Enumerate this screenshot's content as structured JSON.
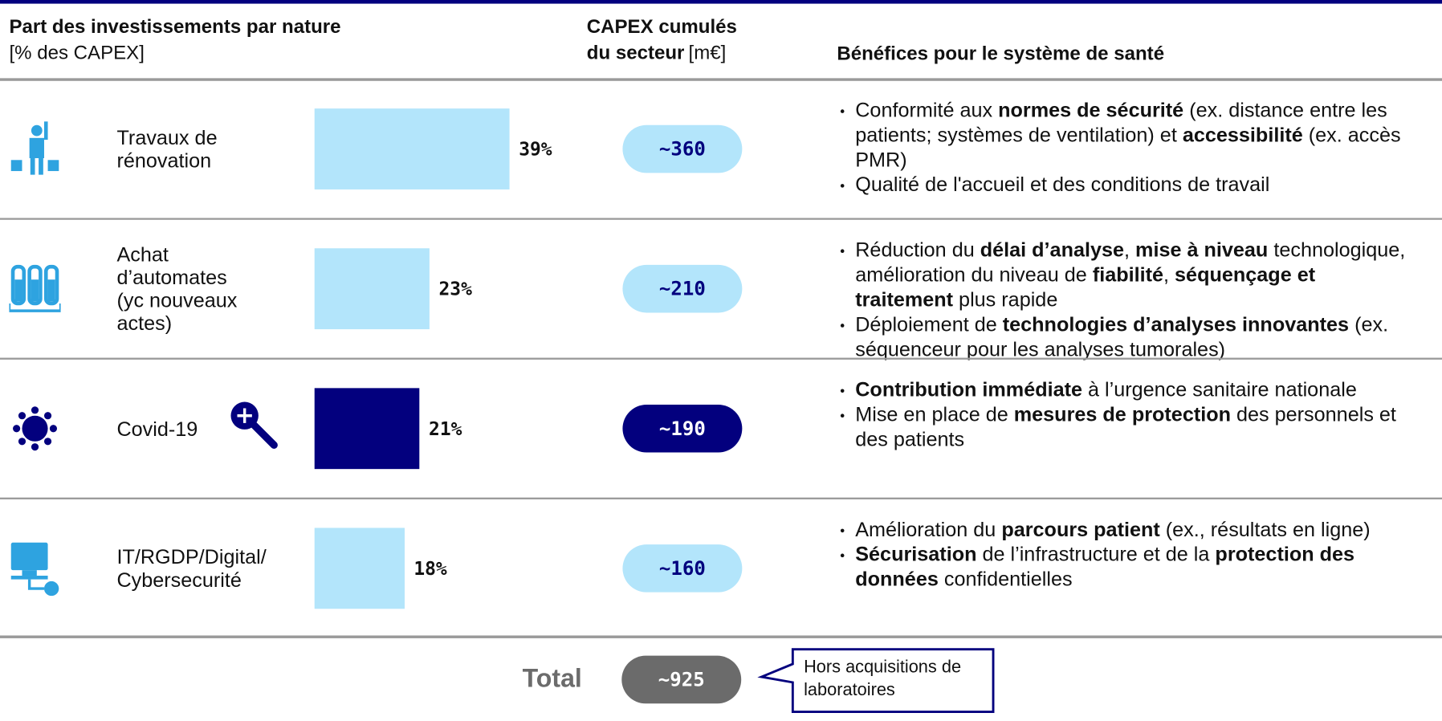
{
  "header": {
    "col1_title": "Part des investissements par nature",
    "col1_unit": "[% des CAPEX]",
    "col2_title": "CAPEX cumulés",
    "col2_sub": "du secteur",
    "col2_unit": "[m€]",
    "col3_title": "Bénéfices pour le système de santé"
  },
  "colors": {
    "light": "#b3e5fb",
    "dark": "#03007e",
    "total": "#6b6b6b"
  },
  "rows": [
    {
      "label": [
        "Travaux de",
        "rénovation"
      ],
      "share": 39,
      "share_label": "39%",
      "capex": "~360",
      "style": "light",
      "benefits": [
        [
          {
            "text": "Conformité aux ",
            "bold": false
          },
          {
            "text": "normes de sécurité",
            "bold": true
          },
          {
            "text": " (ex. distance entre les patients; systèmes de ventilation) et ",
            "bold": false
          },
          {
            "text": "accessibilité",
            "bold": true
          },
          {
            "text": " (ex. accès PMR)",
            "bold": false
          }
        ],
        [
          {
            "text": "Qualité de l'accueil et des conditions de travail",
            "bold": false
          }
        ]
      ]
    },
    {
      "label": [
        "Achat",
        "d’automates",
        "(yc nouveaux",
        "actes)"
      ],
      "share": 23,
      "share_label": "23%",
      "capex": "~210",
      "style": "light",
      "benefits": [
        [
          {
            "text": "Réduction du ",
            "bold": false
          },
          {
            "text": "délai d’analyse",
            "bold": true
          },
          {
            "text": ", ",
            "bold": false
          },
          {
            "text": "mise à niveau",
            "bold": true
          },
          {
            "text": " technologique, amélioration du niveau de ",
            "bold": false
          },
          {
            "text": "fiabilité",
            "bold": true
          },
          {
            "text": ", ",
            "bold": false
          },
          {
            "text": "séquençage et traitement",
            "bold": true
          },
          {
            "text": " plus rapide",
            "bold": false
          }
        ],
        [
          {
            "text": "Déploiement de ",
            "bold": false
          },
          {
            "text": "technologies d’analyses innovantes",
            "bold": true
          },
          {
            "text": " (ex. séquenceur pour les analyses tumorales)",
            "bold": false
          }
        ]
      ]
    },
    {
      "label": [
        "Covid-19"
      ],
      "share": 21,
      "share_label": "21%",
      "capex": "~190",
      "style": "dark",
      "benefits": [
        [
          {
            "text": "Contribution immédiate",
            "bold": true
          },
          {
            "text": " à l’urgence sanitaire nationale",
            "bold": false
          }
        ],
        [
          {
            "text": "Mise en place de ",
            "bold": false
          },
          {
            "text": "mesures de protection",
            "bold": true
          },
          {
            "text": " des personnels et des patients",
            "bold": false
          }
        ]
      ]
    },
    {
      "label": [
        "IT/RGDP/Digital/",
        "Cybersecurité"
      ],
      "share": 18,
      "share_label": "18%",
      "capex": "~160",
      "style": "light",
      "benefits": [
        [
          {
            "text": "Amélioration du ",
            "bold": false
          },
          {
            "text": "parcours patient",
            "bold": true
          },
          {
            "text": " (ex., résultats en ligne)",
            "bold": false
          }
        ],
        [
          {
            "text": "Sécurisation",
            "bold": true
          },
          {
            "text": " de l’infrastructure et de la ",
            "bold": false
          },
          {
            "text": "protection des données",
            "bold": true
          },
          {
            "text": " confidentielles",
            "bold": false
          }
        ]
      ]
    }
  ],
  "total": {
    "label": "Total",
    "capex": "~925",
    "note": "Hors acquisitions de laboratoires"
  }
}
